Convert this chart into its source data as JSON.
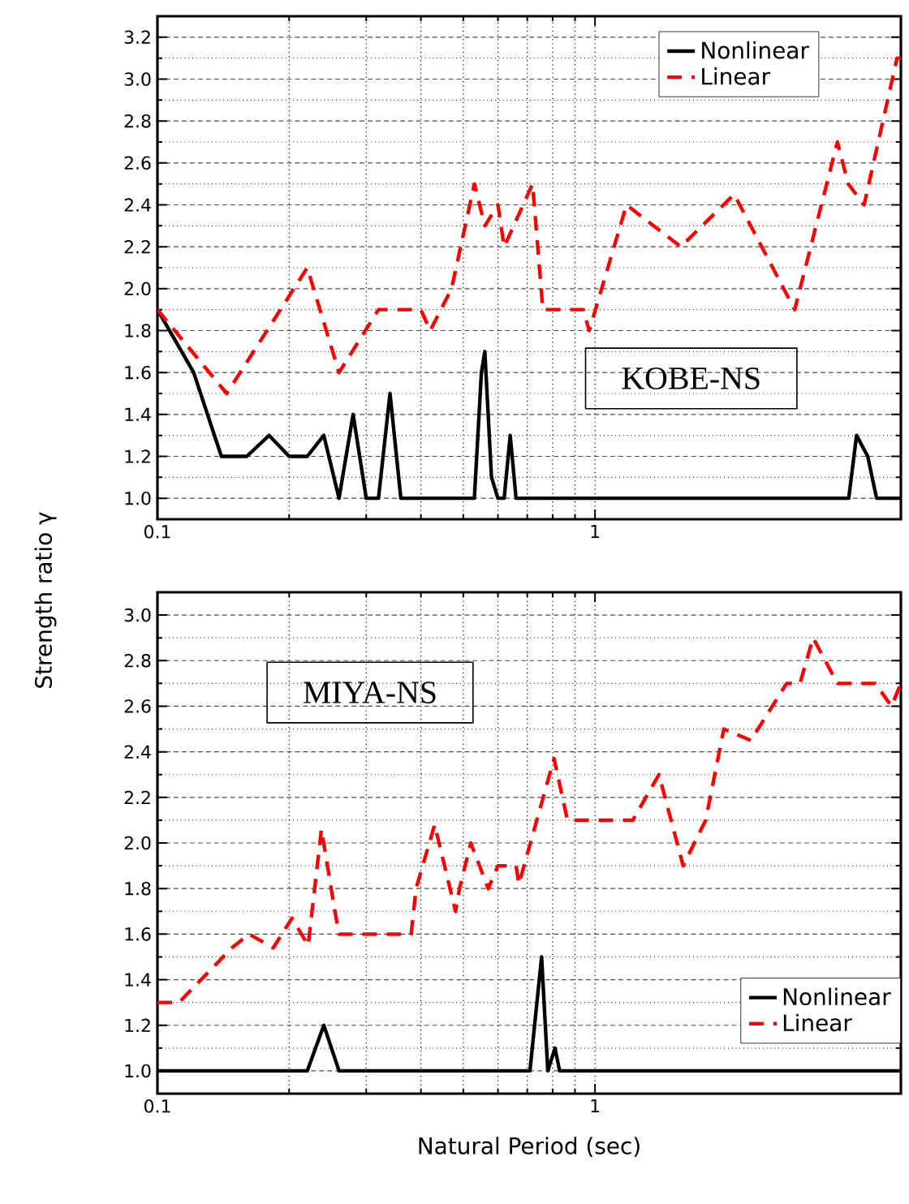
{
  "chart_data": [
    {
      "type": "line",
      "ylabel": "Strength ratio γ",
      "annotations": [
        "KOBE-NS"
      ],
      "log": "x",
      "xlim": [
        0.1,
        5
      ],
      "ylim": [
        0.9,
        3.3
      ],
      "xticks": [
        0.1,
        1
      ],
      "yticks": [
        {
          "value": 1.0,
          "label": "1.0"
        },
        {
          "value": 1.2,
          "label": "1.2"
        },
        {
          "value": 1.4,
          "label": "1.4"
        },
        {
          "value": 1.6,
          "label": "1.6"
        },
        {
          "value": 1.8,
          "label": "1.8"
        },
        {
          "value": 2.0,
          "label": "2.0"
        },
        {
          "value": 2.2,
          "label": "2.2"
        },
        {
          "value": 2.4,
          "label": "2.4"
        },
        {
          "value": 2.6,
          "label": "2.6"
        },
        {
          "value": 2.8,
          "label": "2.8"
        },
        {
          "value": 3.0,
          "label": "3.0"
        },
        {
          "value": 3.2,
          "label": "3.2"
        }
      ],
      "grid": true,
      "legend": "top right",
      "marker": "none",
      "series": [
        {
          "name": "Nonlinear",
          "color": "#000000",
          "line_style": "solid",
          "x": [
            0.1,
            0.121,
            0.14,
            0.16,
            0.18,
            0.2,
            0.22,
            0.24,
            0.26,
            0.28,
            0.3,
            0.32,
            0.34,
            0.36,
            0.53,
            0.55,
            0.56,
            0.58,
            0.6,
            0.62,
            0.64,
            0.66,
            3.8,
            3.96,
            4.2,
            4.4,
            5.0
          ],
          "values": [
            1.9,
            1.6,
            1.2,
            1.2,
            1.3,
            1.2,
            1.2,
            1.3,
            1.0,
            1.4,
            1.0,
            1.0,
            1.5,
            1.0,
            1.0,
            1.6,
            1.7,
            1.1,
            1.0,
            1.0,
            1.3,
            1.0,
            1.0,
            1.3,
            1.2,
            1.0,
            1.0
          ]
        },
        {
          "name": "Linear",
          "color": "#ff0000",
          "line_style": "dashed",
          "x": [
            0.1,
            0.144,
            0.22,
            0.26,
            0.32,
            0.4,
            0.42,
            0.47,
            0.53,
            0.56,
            0.6,
            0.62,
            0.72,
            0.76,
            0.94,
            0.97,
            1.18,
            1.57,
            2.08,
            2.86,
            3.58,
            3.79,
            4.12,
            4.9,
            5.0
          ],
          "values": [
            1.9,
            1.5,
            2.1,
            1.6,
            1.9,
            1.9,
            1.8,
            2.0,
            2.5,
            2.3,
            2.4,
            2.2,
            2.5,
            1.9,
            1.9,
            1.8,
            2.4,
            2.2,
            2.45,
            1.9,
            2.7,
            2.5,
            2.4,
            3.1,
            3.1
          ]
        }
      ]
    },
    {
      "type": "line",
      "xlabel": "Natural Period (sec)",
      "annotations": [
        "MIYA-NS"
      ],
      "log": "x",
      "xlim": [
        0.1,
        5
      ],
      "ylim": [
        0.9,
        3.1
      ],
      "xticks": [
        0.1,
        1
      ],
      "yticks": [
        {
          "value": 1.0,
          "label": "1.0"
        },
        {
          "value": 1.2,
          "label": "1.2"
        },
        {
          "value": 1.4,
          "label": "1.4"
        },
        {
          "value": 1.6,
          "label": "1.6"
        },
        {
          "value": 1.8,
          "label": "1.8"
        },
        {
          "value": 2.0,
          "label": "2.0"
        },
        {
          "value": 2.2,
          "label": "2.2"
        },
        {
          "value": 2.4,
          "label": "2.4"
        },
        {
          "value": 2.6,
          "label": "2.6"
        },
        {
          "value": 2.8,
          "label": "2.8"
        },
        {
          "value": 3.0,
          "label": "3.0"
        }
      ],
      "grid": true,
      "legend": "bottom right",
      "marker": "none",
      "series": [
        {
          "name": "Nonlinear",
          "color": "#000000",
          "line_style": "solid",
          "x": [
            0.1,
            0.22,
            0.24,
            0.26,
            0.71,
            0.755,
            0.78,
            0.81,
            0.83,
            5.0
          ],
          "values": [
            1.0,
            1.0,
            1.2,
            1.0,
            1.0,
            1.5,
            1.0,
            1.1,
            1.0,
            1.0
          ]
        },
        {
          "name": "Linear",
          "color": "#ff0000",
          "line_style": "dashed",
          "x": [
            0.1,
            0.112,
            0.148,
            0.162,
            0.184,
            0.203,
            0.221,
            0.237,
            0.255,
            0.26,
            0.28,
            0.32,
            0.38,
            0.39,
            0.43,
            0.48,
            0.49,
            0.52,
            0.57,
            0.6,
            0.66,
            0.67,
            0.806,
            0.865,
            1.22,
            1.4,
            1.59,
            1.79,
            1.97,
            2.27,
            2.74,
            2.94,
            3.15,
            3.58,
            4.37,
            4.76,
            5.0
          ],
          "values": [
            1.3,
            1.3,
            1.54,
            1.6,
            1.54,
            1.67,
            1.55,
            2.06,
            1.69,
            1.6,
            1.6,
            1.6,
            1.6,
            1.8,
            2.08,
            1.7,
            1.8,
            2.0,
            1.8,
            1.9,
            1.9,
            1.82,
            2.37,
            2.1,
            2.1,
            2.3,
            1.9,
            2.1,
            2.5,
            2.45,
            2.7,
            2.7,
            2.9,
            2.7,
            2.7,
            2.6,
            2.7
          ]
        }
      ]
    }
  ]
}
